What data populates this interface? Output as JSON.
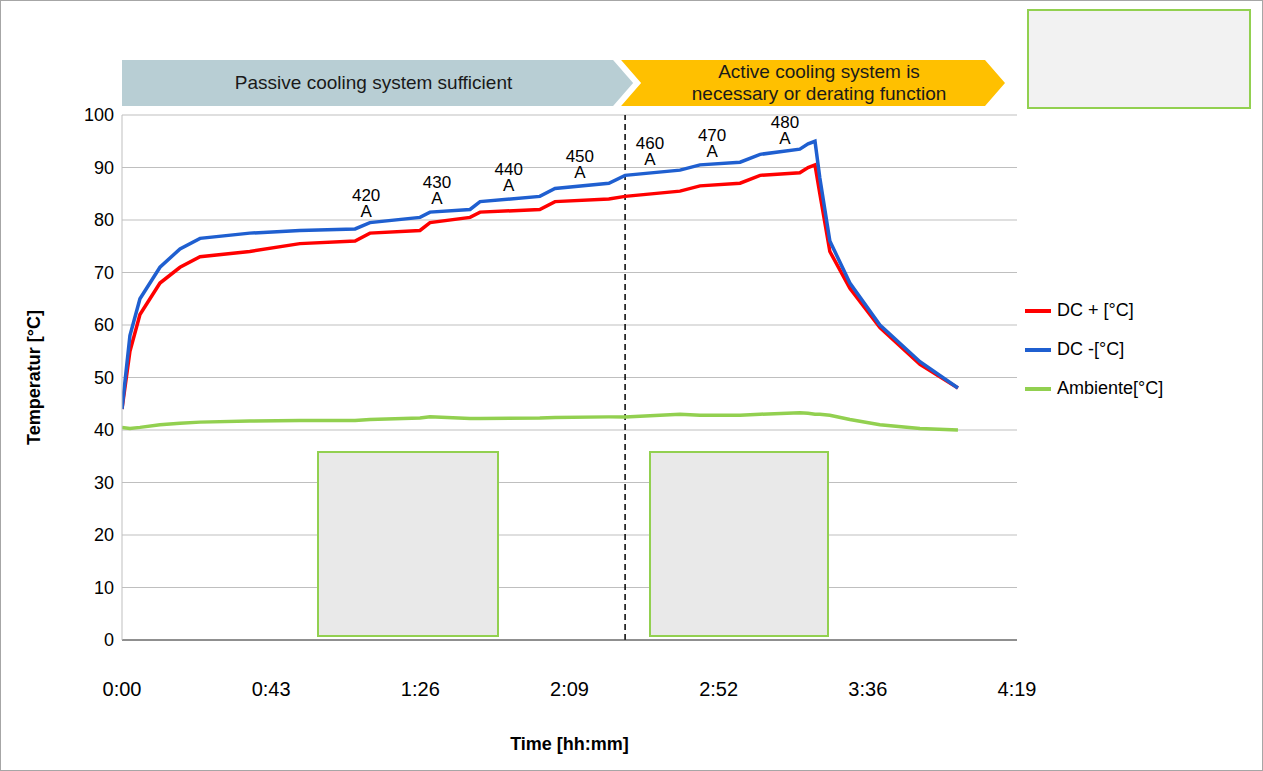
{
  "chart_data": {
    "type": "line",
    "xlabel": "Time [hh:mm]",
    "ylabel": "Temperatur [°C]",
    "x": [
      0,
      2.3,
      5.2,
      11,
      16.8,
      22.6,
      37,
      51.5,
      67.5,
      71.8,
      86.3,
      89.2,
      100.8,
      103.7,
      121,
      125.4,
      141,
      145.7,
      161.6,
      167.4,
      179,
      184.8,
      196.3,
      198.7,
      200.7,
      202.1,
      205,
      210.8,
      219.5,
      231.1,
      242.1
    ],
    "xlim": [
      0,
      259.2
    ],
    "xticks": [
      {
        "value": 0,
        "label": "0:00"
      },
      {
        "value": 43.2,
        "label": "0:43"
      },
      {
        "value": 86.4,
        "label": "1:26"
      },
      {
        "value": 129.6,
        "label": "2:09"
      },
      {
        "value": 172.8,
        "label": "2:52"
      },
      {
        "value": 216,
        "label": "3:36"
      },
      {
        "value": 259.2,
        "label": "4:19"
      }
    ],
    "ylim": [
      0,
      100
    ],
    "yticks": [
      0,
      10,
      20,
      30,
      40,
      50,
      60,
      70,
      80,
      90,
      100
    ],
    "grid": true,
    "legend": "right",
    "series": [
      {
        "name": "DC + [°C]",
        "color": "#ff0000",
        "values": [
          44,
          55,
          62,
          68,
          71,
          73,
          74,
          75.5,
          76,
          77.5,
          78,
          79.5,
          80.5,
          81.5,
          82,
          83.5,
          84,
          84.5,
          85.5,
          86.5,
          87,
          88.5,
          89,
          90,
          90.5,
          85,
          74,
          67,
          59.5,
          52.5,
          48
        ]
      },
      {
        "name": "DC -[°C]",
        "color": "#1f5fd0",
        "values": [
          44,
          58,
          65,
          71,
          74.5,
          76.5,
          77.5,
          78,
          78.3,
          79.5,
          80.5,
          81.5,
          82,
          83.5,
          84.5,
          86,
          87,
          88.5,
          89.5,
          90.5,
          91,
          92.5,
          93.5,
          94.5,
          95,
          88,
          76,
          68,
          60,
          53,
          48
        ]
      },
      {
        "name": "Ambiente[°C]",
        "color": "#92d050",
        "values": [
          40.5,
          40.3,
          40.5,
          41,
          41.3,
          41.5,
          41.7,
          41.8,
          41.8,
          42,
          42.3,
          42.5,
          42.2,
          42.2,
          42.3,
          42.4,
          42.5,
          42.5,
          43,
          42.8,
          42.8,
          43,
          43.3,
          43.2,
          43,
          43,
          42.8,
          42,
          41,
          40.3,
          40
        ]
      }
    ],
    "annotations": [
      {
        "text": "420",
        "unit": "A",
        "x": 70.7,
        "y": 81.7
      },
      {
        "text": "430",
        "unit": "A",
        "x": 91.2,
        "y": 84.1
      },
      {
        "text": "440",
        "unit": "A",
        "x": 112,
        "y": 86.5
      },
      {
        "text": "450",
        "unit": "A",
        "x": 132.6,
        "y": 89.0
      },
      {
        "text": "460",
        "unit": "A",
        "x": 152.9,
        "y": 91.5
      },
      {
        "text": "470",
        "unit": "A",
        "x": 170.9,
        "y": 93.1
      },
      {
        "text": "480",
        "unit": "A",
        "x": 192,
        "y": 95.6
      }
    ],
    "phases": [
      {
        "text": "Passive cooling system sufficient",
        "color": "#b8ced4"
      },
      {
        "text": "Active cooling system is necessary or derating function",
        "color": "#ffc000"
      }
    ],
    "divider": {
      "x": 145.7,
      "line_style": "dashed"
    }
  }
}
